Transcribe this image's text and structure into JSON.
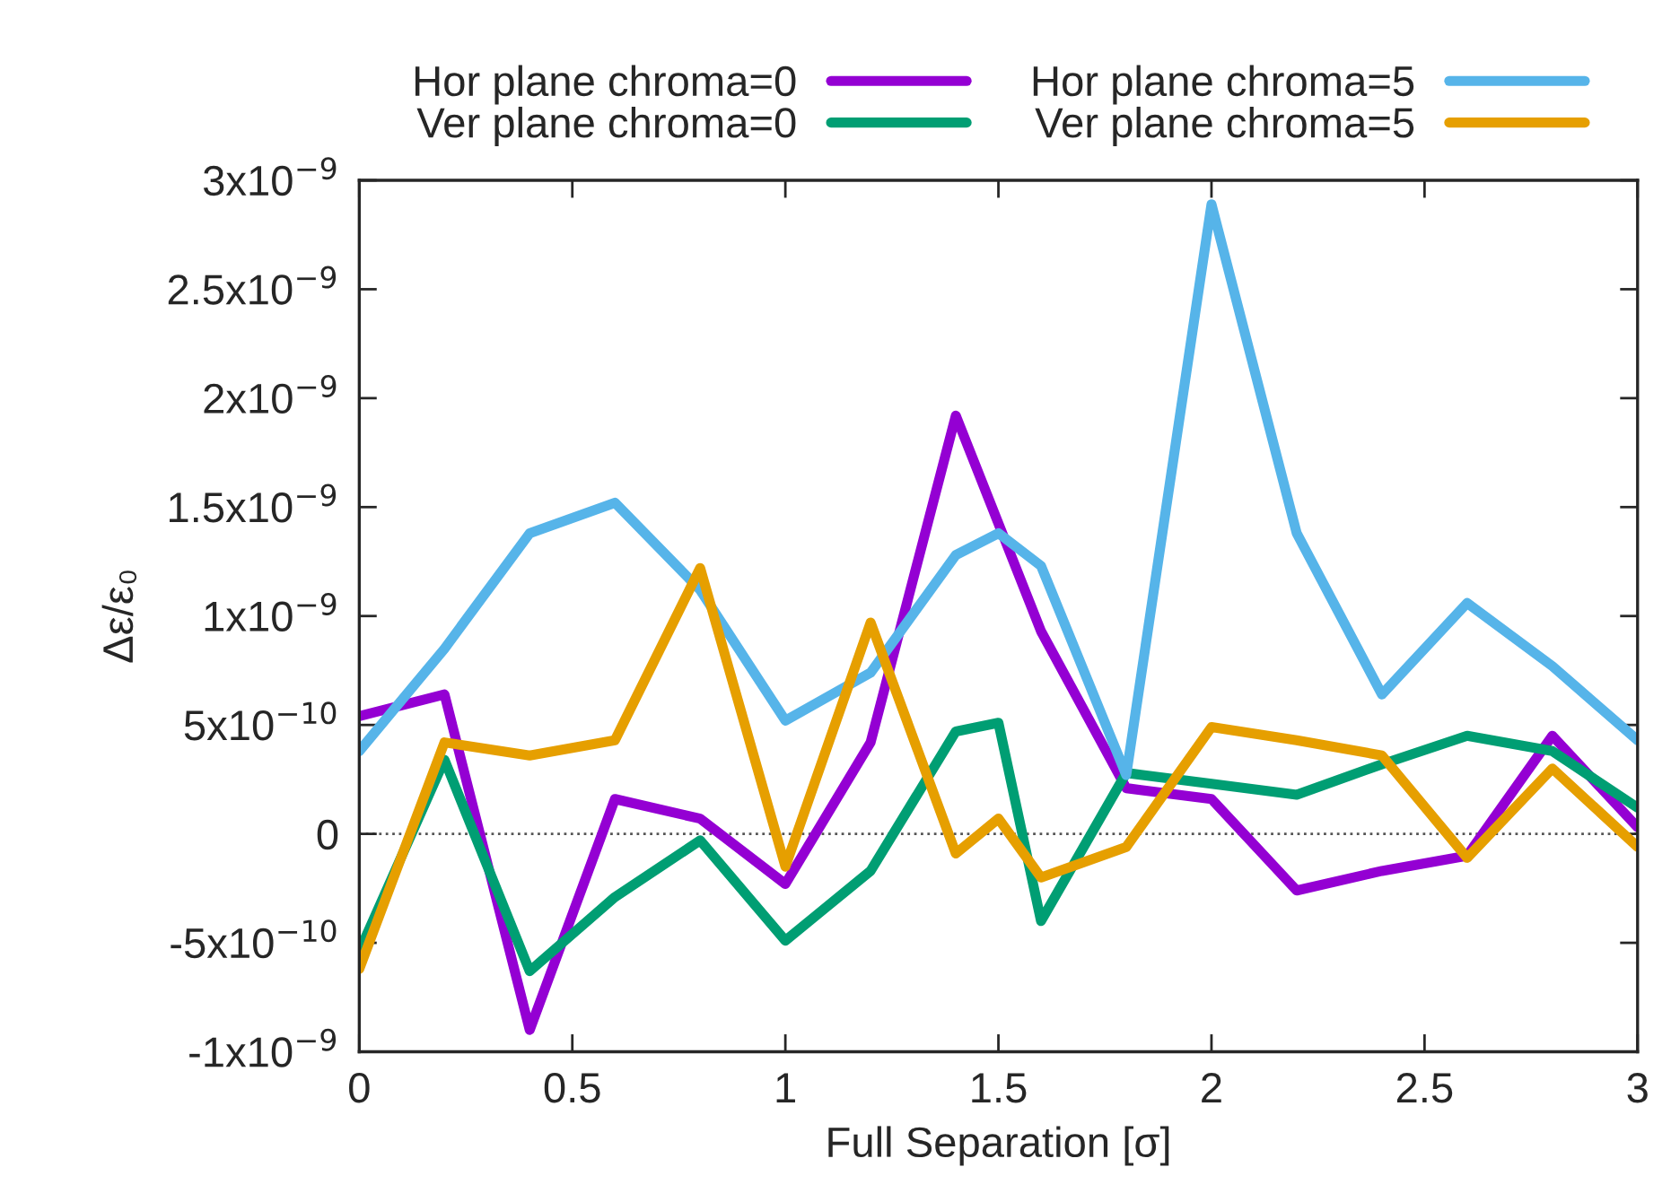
{
  "chart_data": {
    "type": "line",
    "xlabel": "Full Separation [σ]",
    "ylabel": "Δε/ε₀",
    "xlim": [
      0,
      3
    ],
    "xticks": [
      0,
      0.5,
      1,
      1.5,
      2,
      2.5,
      3
    ],
    "ylim": [
      -1e-09,
      3e-09
    ],
    "yticks": [
      {
        "value": -1e-09,
        "label": "-1x10$^{−9}$"
      },
      {
        "value": -5e-10,
        "label": "-5x10$^{−10}$"
      },
      {
        "value": 0,
        "label": "0"
      },
      {
        "value": 5e-10,
        "label": "5x10$^{−10}$"
      },
      {
        "value": 1e-09,
        "label": "1x10$^{−9}$"
      },
      {
        "value": 1.5e-09,
        "label": "1.5x10$^{−9}$"
      },
      {
        "value": 2e-09,
        "label": "2x10$^{−9}$"
      },
      {
        "value": 2.5e-09,
        "label": "2.5x10$^{−9}$"
      },
      {
        "value": 3e-09,
        "label": "3x10$^{−9}$"
      }
    ],
    "grid": false,
    "legend": "top",
    "marker": "none",
    "line_style": "solid",
    "ref_lines": [
      {
        "axis": "y",
        "value": 0,
        "label": null,
        "color": "#555555",
        "line_style": "dotted"
      }
    ],
    "series": [
      {
        "name": "Hor plane chroma=0",
        "color": "#9400d3",
        "x": [
          0,
          0.2,
          0.4,
          0.6,
          0.8,
          1.0,
          1.2,
          1.4,
          1.6,
          1.8,
          2.0,
          2.2,
          2.4,
          2.6,
          2.8,
          3.0
        ],
        "values": [
          5.4e-10,
          6.4e-10,
          -9e-10,
          1.6e-10,
          7e-11,
          -2.3e-10,
          4.2e-10,
          1.92e-09,
          9.3e-10,
          2.1e-10,
          1.6e-10,
          -2.6e-10,
          -1.7e-10,
          -1e-10,
          4.5e-10,
          3e-11
        ]
      },
      {
        "name": "Ver plane chroma=0",
        "color": "#009e73",
        "x": [
          0,
          0.2,
          0.4,
          0.6,
          0.8,
          1.0,
          1.2,
          1.4,
          1.5,
          1.6,
          1.8,
          2.0,
          2.2,
          2.4,
          2.6,
          2.8,
          3.0
        ],
        "values": [
          -5.4e-10,
          3.4e-10,
          -6.3e-10,
          -2.9e-10,
          -3e-11,
          -4.9e-10,
          -1.7e-10,
          4.7e-10,
          5.1e-10,
          -4e-10,
          2.8e-10,
          2.3e-10,
          1.8e-10,
          3.2e-10,
          4.5e-10,
          3.8e-10,
          1.2e-10
        ]
      },
      {
        "name": "Hor plane chroma=5",
        "color": "#56b4e9",
        "x": [
          0,
          0.2,
          0.4,
          0.6,
          0.8,
          1.0,
          1.2,
          1.4,
          1.5,
          1.6,
          1.8,
          2.0,
          2.2,
          2.4,
          2.6,
          2.8,
          3.0
        ],
        "values": [
          3.8e-10,
          8.5e-10,
          1.38e-09,
          1.52e-09,
          1.12e-09,
          5.2e-10,
          7.4e-10,
          1.28e-09,
          1.38e-09,
          1.23e-09,
          2.7e-10,
          2.89e-09,
          1.38e-09,
          6.4e-10,
          1.06e-09,
          7.7e-10,
          4.3e-10
        ]
      },
      {
        "name": "Ver plane chroma=5",
        "color": "#e69f00",
        "x": [
          0,
          0.2,
          0.4,
          0.6,
          0.8,
          1.0,
          1.2,
          1.4,
          1.5,
          1.6,
          1.8,
          2.0,
          2.2,
          2.4,
          2.6,
          2.8,
          3.0
        ],
        "values": [
          -6.2e-10,
          4.2e-10,
          3.6e-10,
          4.3e-10,
          1.22e-09,
          -1.5e-10,
          9.7e-10,
          -9e-11,
          7e-11,
          -2e-10,
          -6e-11,
          4.9e-10,
          4.3e-10,
          3.6e-10,
          -1.1e-10,
          3e-10,
          -6e-11
        ]
      }
    ]
  }
}
